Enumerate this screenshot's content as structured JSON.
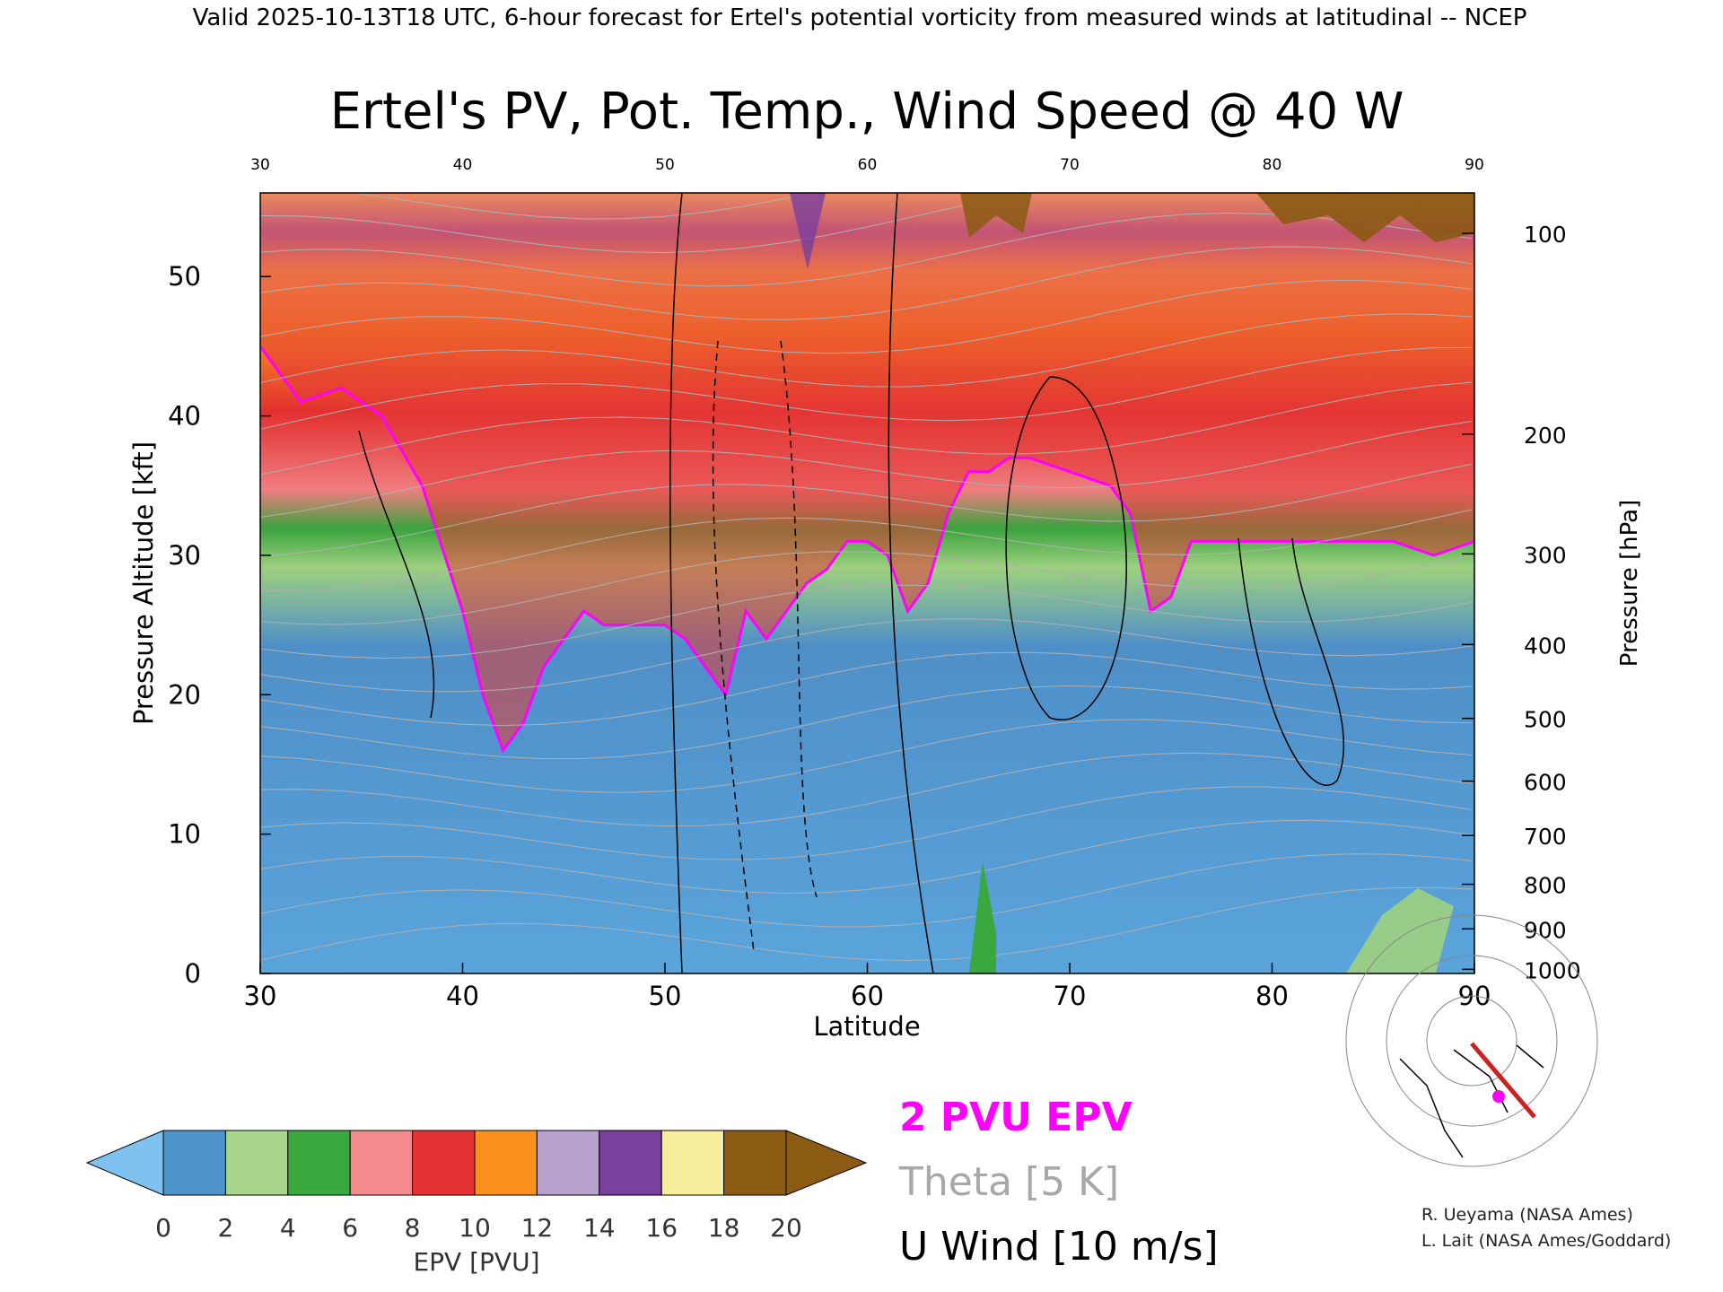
{
  "header": "Valid 2025-10-13T18 UTC, 6-hour forecast for Ertel's potential vorticity from measured winds at latitudinal -- NCEP",
  "chart_data": {
    "type": "heatmap",
    "title": "Ertel's PV, Pot. Temp., Wind Speed @ 40 W",
    "xlabel": "Latitude",
    "ylabel": "Pressure Altitude [kft]",
    "ylabel_right": "Pressure [hPa]",
    "x_ticks": [
      "30",
      "40",
      "50",
      "60",
      "70",
      "80",
      "90"
    ],
    "x_ticks_top": [
      "30",
      "40",
      "50",
      "60",
      "70",
      "80",
      "90"
    ],
    "xlim": [
      30,
      90
    ],
    "ylim": [
      0,
      56
    ],
    "y_ticks": [
      "0",
      "10",
      "20",
      "30",
      "40",
      "50"
    ],
    "pressure_ticks": [
      {
        "label": "100",
        "kft": 53.1
      },
      {
        "label": "200",
        "kft": 38.7
      },
      {
        "label": "300",
        "kft": 30.1
      },
      {
        "label": "400",
        "kft": 23.6
      },
      {
        "label": "500",
        "kft": 18.3
      },
      {
        "label": "600",
        "kft": 13.8
      },
      {
        "label": "700",
        "kft": 9.9
      },
      {
        "label": "800",
        "kft": 6.4
      },
      {
        "label": "900",
        "kft": 3.2
      },
      {
        "label": "1000",
        "kft": 0.3
      }
    ],
    "tropopause_2pvu": {
      "lat": [
        30,
        32,
        34,
        36,
        38,
        40,
        41,
        42,
        43,
        44,
        45,
        46,
        47,
        48,
        50,
        51,
        52,
        53,
        54,
        55,
        56,
        57,
        58,
        59,
        60,
        61,
        62,
        63,
        64,
        65,
        66,
        67,
        68,
        70,
        72,
        73,
        74,
        75,
        76,
        78,
        80,
        82,
        84,
        86,
        88,
        90
      ],
      "kft": [
        45,
        41,
        42,
        40,
        35,
        26,
        20,
        16,
        18,
        22,
        24,
        26,
        25,
        25,
        25,
        24,
        22,
        20,
        26,
        24,
        26,
        28,
        29,
        31,
        31,
        30,
        26,
        28,
        33,
        36,
        36,
        37,
        37,
        36,
        35,
        33,
        26,
        27,
        31,
        31,
        31,
        31,
        31,
        31,
        30,
        31
      ]
    },
    "colorbar": {
      "label": "EPV [PVU]",
      "ticks": [
        "0",
        "2",
        "4",
        "6",
        "8",
        "10",
        "12",
        "14",
        "16",
        "18",
        "20"
      ],
      "colors": [
        "#4f93cc",
        "#a7d58a",
        "#39a83e",
        "#f58a8c",
        "#e63232",
        "#fb8f1b",
        "#b9a2cf",
        "#7b3f9e",
        "#f6ee9a",
        "#8b5a13"
      ],
      "under_color": "#7fc2f0",
      "over_color": "#8b5a13"
    },
    "legend": [
      {
        "name": "2 PVU EPV",
        "color": "#ff00ff"
      },
      {
        "name": "Theta [5 K]",
        "color": "#a0a0a0"
      },
      {
        "name": "U Wind [10 m/s]",
        "color": "#000000"
      }
    ],
    "credits": [
      "R. Ueyama (NASA Ames)",
      "L. Lait (NASA Ames/Goddard)"
    ]
  }
}
